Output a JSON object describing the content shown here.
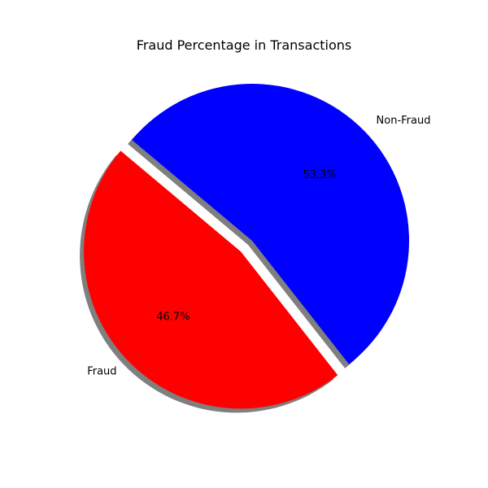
{
  "chart_data": {
    "type": "pie",
    "title": "Fraud Percentage in Transactions",
    "labels": [
      "Fraud",
      "Non-Fraud"
    ],
    "values": [
      46.7,
      53.3
    ],
    "percent_labels": [
      "46.7%",
      "53.3%"
    ],
    "colors": [
      "#ff0000",
      "#0000ff"
    ],
    "explode": [
      0.1,
      0
    ],
    "start_angle_deg": 140,
    "shadow": true,
    "legend": "none",
    "grid": false
  }
}
